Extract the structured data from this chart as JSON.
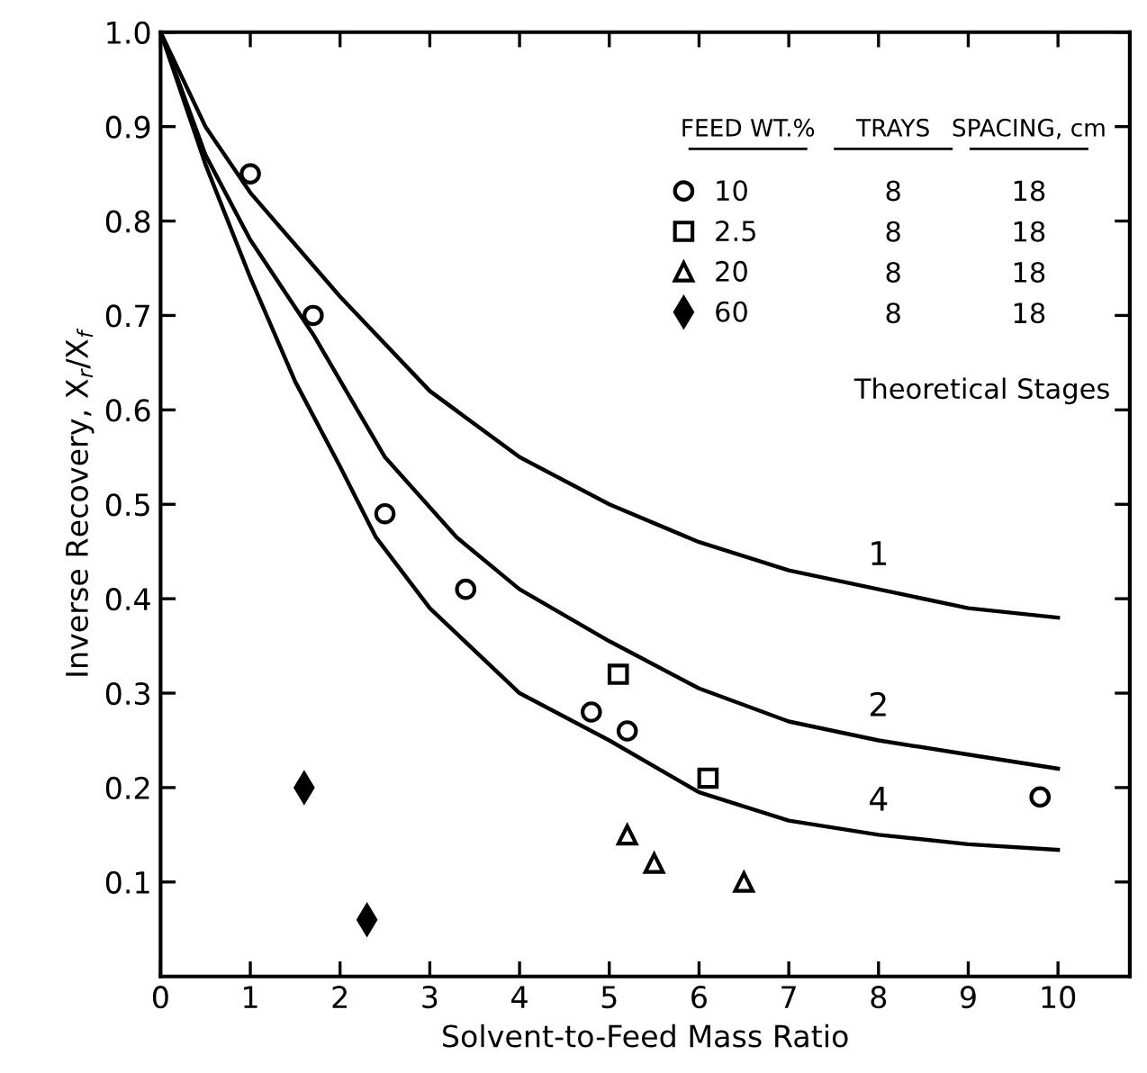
{
  "chart_data": {
    "type": "scatter",
    "xlabel": "Solvent-to-Feed Mass Ratio",
    "ylabel": "Inverse Recovery, X$_{r}$/X$_{f}$",
    "xlim": [
      0,
      10.8
    ],
    "ylim": [
      0,
      1.0
    ],
    "xticks": [
      0,
      1,
      2,
      3,
      4,
      5,
      6,
      7,
      8,
      9,
      10
    ],
    "yticks": [
      0.1,
      0.2,
      0.3,
      0.4,
      0.5,
      0.6,
      0.7,
      0.8,
      0.9,
      {
        "value": 1.0,
        "label": "1.0"
      }
    ],
    "grid": false,
    "legend": "top right",
    "series": [
      {
        "name": "10",
        "marker": "circle",
        "color": "#000000",
        "x": [
          1.0,
          1.7,
          2.5,
          3.4,
          4.8,
          5.2,
          9.8
        ],
        "values": [
          0.85,
          0.7,
          0.49,
          0.41,
          0.28,
          0.26,
          0.19
        ]
      },
      {
        "name": "2.5",
        "marker": "square",
        "color": "#000000",
        "x": [
          5.1,
          6.1
        ],
        "values": [
          0.32,
          0.21
        ]
      },
      {
        "name": "20",
        "marker": "triangle",
        "color": "#000000",
        "x": [
          5.2,
          5.5,
          6.5
        ],
        "values": [
          0.15,
          0.12,
          0.1
        ]
      },
      {
        "name": "60",
        "marker": "diamond",
        "color": "#000000",
        "x": [
          1.6,
          2.3
        ],
        "values": [
          0.2,
          0.06
        ]
      },
      {
        "name": "1",
        "type": "line",
        "line_style": "solid",
        "color": "#000000",
        "x": [
          0,
          0.5,
          1,
          2,
          3,
          4,
          5,
          6,
          7,
          8,
          9,
          10
        ],
        "values": [
          1.0,
          0.9,
          0.83,
          0.72,
          0.62,
          0.55,
          0.5,
          0.46,
          0.43,
          0.41,
          0.39,
          0.38
        ]
      },
      {
        "name": "2",
        "type": "line",
        "line_style": "solid",
        "color": "#000000",
        "x": [
          0,
          0.5,
          1,
          1.7,
          2.5,
          3.3,
          4,
          5,
          6,
          7,
          8,
          9,
          10
        ],
        "values": [
          1.0,
          0.87,
          0.78,
          0.68,
          0.55,
          0.465,
          0.41,
          0.355,
          0.305,
          0.27,
          0.25,
          0.235,
          0.22
        ]
      },
      {
        "name": "4",
        "type": "line",
        "line_style": "solid",
        "color": "#000000",
        "x": [
          0,
          0.5,
          1,
          1.5,
          2,
          2.4,
          3,
          4,
          5,
          6,
          7,
          8,
          9,
          10
        ],
        "values": [
          1.0,
          0.86,
          0.74,
          0.63,
          0.54,
          0.465,
          0.39,
          0.3,
          0.25,
          0.195,
          0.165,
          0.15,
          0.14,
          0.134
        ]
      }
    ],
    "annotations": [
      "Theoretical Stages",
      "FEED WT.%",
      "TRAYS",
      "SPACING, cm",
      "8",
      "18",
      "8",
      "18",
      "8",
      "18",
      "8",
      "18"
    ]
  }
}
